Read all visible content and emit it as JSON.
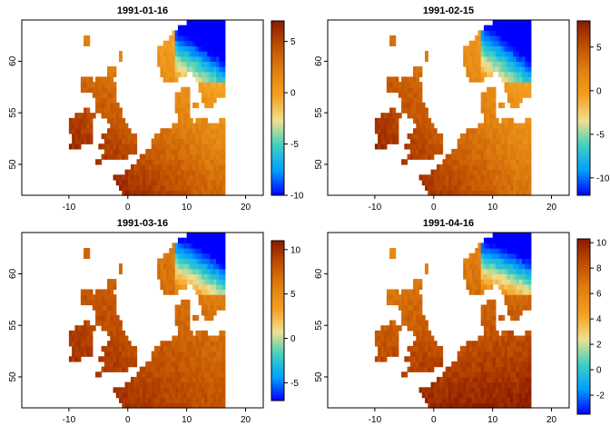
{
  "figure": {
    "panels": [
      {
        "title": "1991-01-16",
        "colorbar_ticks": [
          5,
          0,
          -5,
          -10
        ],
        "value_range": [
          -10,
          7
        ]
      },
      {
        "title": "1991-02-15",
        "colorbar_ticks": [
          5,
          0,
          -5,
          -10
        ],
        "value_range": [
          -12,
          8
        ]
      },
      {
        "title": "1991-03-16",
        "colorbar_ticks": [
          10,
          5,
          0,
          -5
        ],
        "value_range": [
          -7,
          11
        ]
      },
      {
        "title": "1991-04-16",
        "colorbar_ticks": [
          10,
          8,
          6,
          4,
          2,
          0,
          -2
        ],
        "value_range": [
          -3.5,
          10.3
        ]
      }
    ],
    "x_axis": {
      "range": [
        -18,
        23
      ],
      "ticks": [
        "-10",
        "0",
        "10",
        "20"
      ]
    },
    "y_axis": {
      "range": [
        47,
        64
      ],
      "ticks": [
        "50",
        "55",
        "60"
      ]
    },
    "colormap": [
      "#0000ff",
      "#00a0ff",
      "#40d0c0",
      "#f0e090",
      "#f5a020",
      "#e08010",
      "#c05000",
      "#8b1a00"
    ]
  }
}
